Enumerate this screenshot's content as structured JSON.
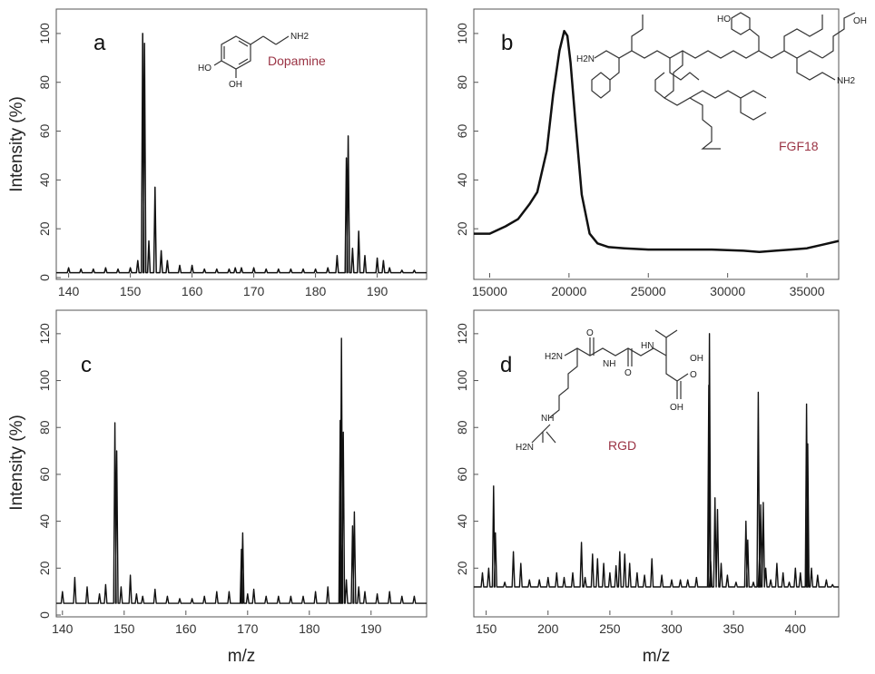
{
  "chart_data": [
    {
      "type": "line",
      "panel": "a",
      "ylabel": "Intensity (%)",
      "xlabel": "",
      "xlim": [
        138,
        198
      ],
      "ylim": [
        0,
        110
      ],
      "xticks": [
        140,
        150,
        160,
        170,
        180,
        190
      ],
      "yticks": [
        0,
        20,
        40,
        60,
        80,
        100
      ],
      "compound": "Dopamine",
      "baseline": 2,
      "peaks": [
        [
          140,
          4
        ],
        [
          142,
          3.5
        ],
        [
          144,
          3.5
        ],
        [
          146,
          4
        ],
        [
          148,
          3.5
        ],
        [
          150,
          4
        ],
        [
          151.2,
          7
        ],
        [
          152,
          100
        ],
        [
          152.3,
          96
        ],
        [
          153,
          15
        ],
        [
          154,
          37
        ],
        [
          155,
          11
        ],
        [
          156,
          7
        ],
        [
          158,
          5
        ],
        [
          160,
          5
        ],
        [
          162,
          3.5
        ],
        [
          164,
          3.5
        ],
        [
          166,
          3.5
        ],
        [
          167,
          4
        ],
        [
          168,
          4
        ],
        [
          170,
          4
        ],
        [
          172,
          3.5
        ],
        [
          174,
          3.5
        ],
        [
          176,
          3.5
        ],
        [
          178,
          3.5
        ],
        [
          180,
          3.5
        ],
        [
          182,
          4
        ],
        [
          183.5,
          9
        ],
        [
          185,
          49
        ],
        [
          185.3,
          58
        ],
        [
          186,
          12
        ],
        [
          187,
          19
        ],
        [
          188,
          9
        ],
        [
          190,
          8
        ],
        [
          191,
          7
        ],
        [
          192,
          4
        ],
        [
          194,
          3
        ],
        [
          196,
          3
        ]
      ]
    },
    {
      "type": "line",
      "panel": "b",
      "ylabel": "",
      "xlabel": "",
      "xlim": [
        14000,
        37000
      ],
      "ylim": [
        0,
        110
      ],
      "xticks": [
        15000,
        20000,
        25000,
        30000,
        35000
      ],
      "yticks": [
        20,
        40,
        60,
        80,
        100
      ],
      "compound": "FGF18",
      "x": [
        14000,
        15000,
        16000,
        16800,
        17500,
        18000,
        18600,
        19000,
        19400,
        19700,
        19900,
        20100,
        20400,
        20800,
        21300,
        21800,
        22500,
        23500,
        25000,
        27000,
        29000,
        31000,
        32000,
        33000,
        34000,
        35000,
        36000,
        37000
      ],
      "y": [
        18,
        18,
        21,
        24,
        30,
        35,
        52,
        75,
        93,
        101,
        99,
        88,
        64,
        34,
        18,
        14,
        12.5,
        12,
        11.5,
        11.5,
        11.5,
        11,
        10.5,
        11,
        11.5,
        12,
        13.5,
        15
      ]
    },
    {
      "type": "line",
      "panel": "c",
      "ylabel": "Intensity (%)",
      "xlabel": "m/z",
      "xlim": [
        139,
        199
      ],
      "ylim": [
        0,
        130
      ],
      "xticks": [
        140,
        150,
        160,
        170,
        180,
        190
      ],
      "yticks": [
        0,
        20,
        40,
        60,
        80,
        100,
        120
      ],
      "compound": "",
      "baseline": 5,
      "peaks": [
        [
          140,
          10
        ],
        [
          142,
          16
        ],
        [
          144,
          12
        ],
        [
          146,
          9
        ],
        [
          147,
          13
        ],
        [
          148.5,
          82
        ],
        [
          148.8,
          70
        ],
        [
          149.5,
          12
        ],
        [
          151,
          17
        ],
        [
          152,
          9
        ],
        [
          153,
          8
        ],
        [
          155,
          11
        ],
        [
          157,
          8
        ],
        [
          159,
          7
        ],
        [
          161,
          7
        ],
        [
          163,
          8
        ],
        [
          165,
          10
        ],
        [
          167,
          10
        ],
        [
          169,
          28
        ],
        [
          169.2,
          35
        ],
        [
          170,
          9
        ],
        [
          171,
          11
        ],
        [
          173,
          8
        ],
        [
          175,
          8
        ],
        [
          177,
          8
        ],
        [
          179,
          8
        ],
        [
          181,
          10
        ],
        [
          183,
          12
        ],
        [
          185,
          83
        ],
        [
          185.2,
          118
        ],
        [
          185.5,
          78
        ],
        [
          186,
          15
        ],
        [
          187,
          38
        ],
        [
          187.3,
          44
        ],
        [
          188,
          12
        ],
        [
          189,
          10
        ],
        [
          191,
          9
        ],
        [
          193,
          10
        ],
        [
          195,
          8
        ],
        [
          197,
          8
        ]
      ]
    },
    {
      "type": "line",
      "panel": "d",
      "ylabel": "",
      "xlabel": "m/z",
      "xlim": [
        140,
        435
      ],
      "ylim": [
        0,
        130
      ],
      "xticks": [
        150,
        200,
        250,
        300,
        350,
        400
      ],
      "yticks": [
        20,
        40,
        60,
        80,
        100,
        120
      ],
      "compound": "RGD",
      "baseline": 12,
      "peaks": [
        [
          147,
          18
        ],
        [
          152,
          20
        ],
        [
          156,
          55
        ],
        [
          157.5,
          35
        ],
        [
          165,
          14
        ],
        [
          172,
          27
        ],
        [
          178,
          22
        ],
        [
          185,
          15
        ],
        [
          193,
          15
        ],
        [
          200,
          16
        ],
        [
          207,
          18
        ],
        [
          213,
          16
        ],
        [
          220,
          18
        ],
        [
          227,
          31
        ],
        [
          230,
          16
        ],
        [
          236,
          26
        ],
        [
          240,
          24
        ],
        [
          245,
          22
        ],
        [
          250,
          18
        ],
        [
          255,
          21
        ],
        [
          258,
          27
        ],
        [
          262,
          26
        ],
        [
          266,
          22
        ],
        [
          272,
          18
        ],
        [
          278,
          17
        ],
        [
          284,
          24
        ],
        [
          292,
          17
        ],
        [
          300,
          15
        ],
        [
          307,
          15
        ],
        [
          313,
          15
        ],
        [
          320,
          16
        ],
        [
          330,
          98
        ],
        [
          330.5,
          120
        ],
        [
          331.5,
          23
        ],
        [
          335,
          50
        ],
        [
          337,
          45
        ],
        [
          340,
          22
        ],
        [
          345,
          17
        ],
        [
          352,
          14
        ],
        [
          360,
          40
        ],
        [
          361.5,
          32
        ],
        [
          366,
          14
        ],
        [
          370,
          95
        ],
        [
          371,
          26
        ],
        [
          372,
          47
        ],
        [
          374,
          48
        ],
        [
          376,
          20
        ],
        [
          380,
          15
        ],
        [
          385,
          22
        ],
        [
          390,
          18
        ],
        [
          395,
          14
        ],
        [
          400,
          20
        ],
        [
          404,
          18
        ],
        [
          409,
          90
        ],
        [
          410,
          73
        ],
        [
          413,
          20
        ],
        [
          418,
          17
        ],
        [
          425,
          15
        ],
        [
          430,
          13
        ]
      ]
    }
  ],
  "molecule_labels": {
    "dopamine": {
      "nh2": "NH2",
      "ho": "HO",
      "oh": "OH"
    },
    "fgf18": {
      "nh2_left": "H2N",
      "nh2_right": "NH2",
      "oh_tyr": "HO",
      "oh_pro": "OH"
    },
    "rgd": {
      "h2n": "H2N",
      "nh": "NH",
      "hn": "HN",
      "nh_guan": "NH",
      "h2n_guan": "H2N",
      "oh1": "OH",
      "oh2": "OH",
      "o1": "O",
      "o2": "O",
      "o3": "O"
    }
  }
}
